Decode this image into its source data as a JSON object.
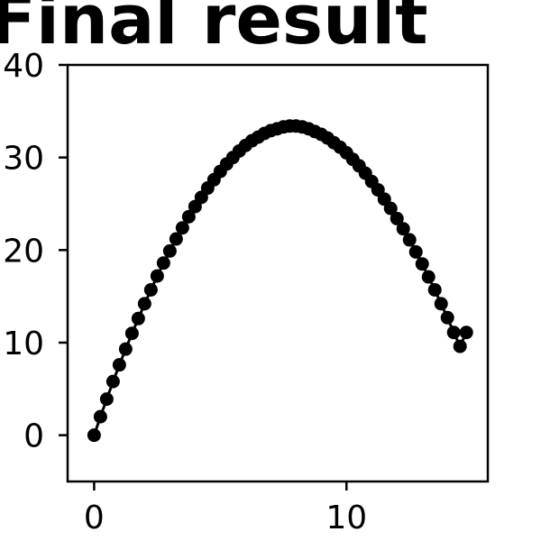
{
  "chart_data": {
    "type": "line",
    "title": "Final result",
    "xlabel": "",
    "ylabel": "",
    "xlim": [
      -1.05,
      15.6
    ],
    "ylim": [
      -5,
      40
    ],
    "x_ticks": [
      0,
      10
    ],
    "x_tick_labels": [
      "0",
      "10"
    ],
    "y_ticks": [
      0,
      10,
      20,
      30,
      40
    ],
    "y_tick_labels": [
      "0",
      "10",
      "20",
      "30",
      "40"
    ],
    "grid": false,
    "legend": "none",
    "series": [
      {
        "color": "#000000",
        "marker": "circle",
        "x": [
          0.0,
          0.25,
          0.5,
          0.75,
          1.0,
          1.25,
          1.5,
          1.75,
          2.0,
          2.25,
          2.5,
          2.75,
          3.0,
          3.25,
          3.5,
          3.75,
          4.0,
          4.25,
          4.5,
          4.75,
          5.0,
          5.25,
          5.5,
          5.75,
          6.0,
          6.25,
          6.5,
          6.75,
          7.0,
          7.25,
          7.5,
          7.75,
          8.0,
          8.25,
          8.5,
          8.75,
          9.0,
          9.25,
          9.5,
          9.75,
          10.0,
          10.25,
          10.5,
          10.75,
          11.0,
          11.25,
          11.5,
          11.75,
          12.0,
          12.25,
          12.5,
          12.75,
          13.0,
          13.25,
          13.5,
          13.75,
          14.0,
          14.25,
          14.5,
          14.75
        ],
        "y": [
          0.0,
          2.0,
          3.9,
          5.8,
          7.6,
          9.3,
          11.0,
          12.6,
          14.2,
          15.7,
          17.2,
          18.6,
          19.9,
          21.2,
          22.4,
          23.6,
          24.7,
          25.7,
          26.7,
          27.6,
          28.5,
          29.3,
          30.0,
          30.7,
          31.3,
          31.8,
          32.2,
          32.6,
          32.9,
          33.1,
          33.3,
          33.4,
          33.4,
          33.3,
          33.1,
          32.8,
          32.5,
          32.1,
          31.6,
          31.1,
          30.5,
          29.8,
          29.1,
          28.3,
          27.4,
          26.5,
          25.5,
          24.5,
          23.4,
          22.3,
          21.1,
          19.8,
          18.5,
          17.1,
          15.7,
          14.2,
          12.7,
          11.1,
          9.6,
          11.1
        ]
      }
    ]
  }
}
